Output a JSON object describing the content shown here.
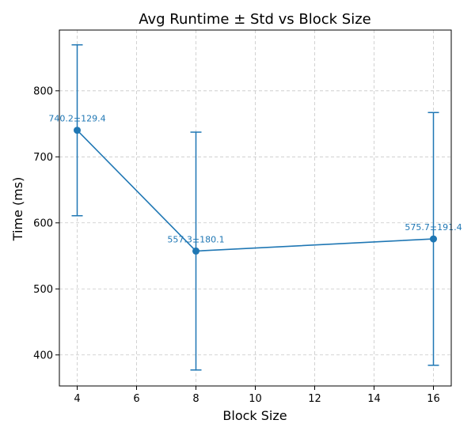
{
  "chart_data": {
    "type": "line",
    "title": "Avg Runtime ± Std vs Block Size",
    "xlabel": "Block Size",
    "ylabel": "Time (ms)",
    "x": [
      4,
      8,
      16
    ],
    "series": [
      {
        "values": [
          740.2,
          557.3,
          575.7
        ],
        "errors": [
          129.4,
          180.1,
          191.4
        ],
        "labels": [
          "740.2±129.4",
          "557.3±180.1",
          "575.7±191.4"
        ]
      }
    ],
    "xticks": [
      4,
      6,
      8,
      10,
      12,
      14,
      16
    ],
    "yticks": [
      400,
      500,
      600,
      700,
      800
    ],
    "xlim": [
      3.4,
      16.6
    ],
    "ylim": [
      353,
      892
    ],
    "grid": true,
    "line_color": "#1f77b4",
    "grid_color": "#c8c8c8"
  }
}
